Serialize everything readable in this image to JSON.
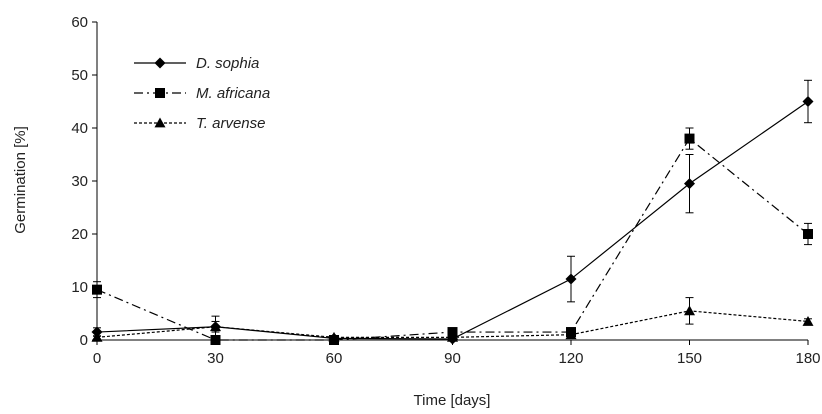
{
  "chart_data": {
    "type": "line",
    "title": "",
    "xlabel": "Time [days]",
    "ylabel": "Germination [%]",
    "x": [
      0,
      30,
      60,
      90,
      120,
      150,
      180
    ],
    "x_ticks": [
      "0",
      "30",
      "60",
      "90",
      "120",
      "150",
      "180"
    ],
    "y_ticks": [
      "0",
      "10",
      "20",
      "30",
      "40",
      "50",
      "60"
    ],
    "xlim": [
      0,
      180
    ],
    "ylim": [
      0,
      60
    ],
    "grid": false,
    "legend_position": "top-left",
    "series": [
      {
        "name": "D. sophia",
        "marker": "diamond",
        "line_style": "solid",
        "color": "#000000",
        "values": [
          1.5,
          2.5,
          0.3,
          0.2,
          11.5,
          29.5,
          45.0
        ],
        "error": [
          0.8,
          2.0,
          0.2,
          0.2,
          4.3,
          5.5,
          4.0
        ]
      },
      {
        "name": "M. africana",
        "marker": "square",
        "line_style": "dash-dot",
        "color": "#000000",
        "values": [
          9.5,
          0.0,
          0.0,
          1.5,
          1.5,
          38.0,
          20.0
        ],
        "error": [
          1.5,
          0.3,
          0.3,
          0.5,
          0.8,
          2.0,
          2.0
        ]
      },
      {
        "name": "T. arvense",
        "marker": "triangle",
        "line_style": "dotted",
        "color": "#000000",
        "values": [
          0.5,
          2.5,
          0.5,
          0.5,
          1.0,
          5.5,
          3.5
        ],
        "error": [
          0.3,
          1.0,
          0.3,
          0.3,
          0.5,
          2.5,
          0.5
        ]
      }
    ]
  }
}
